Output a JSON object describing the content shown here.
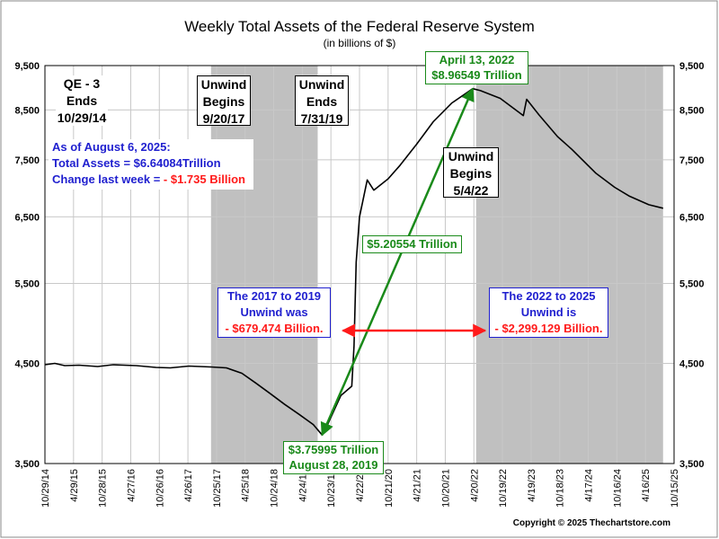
{
  "chart_data": {
    "type": "line",
    "title": "Weekly Total Assets of the Federal Reserve System",
    "subtitle": "(in billions of $)",
    "y_scale": "log",
    "ylim": [
      3500,
      9500
    ],
    "y_ticks": [
      "3,500",
      "4,500",
      "5,500",
      "6,500",
      "7,500",
      "8,500",
      "9,500"
    ],
    "y_tick_values": [
      3500,
      4500,
      5500,
      6500,
      7500,
      8500,
      9500
    ],
    "xlim": [
      "2014-10-29",
      "2025-10-15"
    ],
    "x_ticks": [
      "10/29/14",
      "4/29/15",
      "10/28/15",
      "4/27/16",
      "10/26/16",
      "4/26/17",
      "10/25/17",
      "4/25/18",
      "10/24/18",
      "4/24/19",
      "10/23/19",
      "4/22/20",
      "10/21/20",
      "4/21/21",
      "10/20/21",
      "4/20/22",
      "10/19/22",
      "4/19/23",
      "10/18/23",
      "4/17/24",
      "10/16/24",
      "4/16/25",
      "10/15/25"
    ],
    "x_tick_dates": [
      "2014-10-29",
      "2015-04-29",
      "2015-10-28",
      "2016-04-27",
      "2016-10-26",
      "2017-04-26",
      "2017-10-25",
      "2018-04-25",
      "2018-10-24",
      "2019-04-24",
      "2019-10-23",
      "2020-04-22",
      "2020-10-21",
      "2021-04-21",
      "2021-10-20",
      "2022-04-20",
      "2022-10-19",
      "2023-04-19",
      "2023-10-18",
      "2024-04-17",
      "2024-10-16",
      "2025-04-16",
      "2025-10-15"
    ],
    "grid": true,
    "line_color": "#000000",
    "shade_color": "#c0c0c0",
    "shaded_periods": [
      [
        "2017-09-20",
        "2019-07-31"
      ],
      [
        "2022-05-04",
        "2025-08-06"
      ]
    ],
    "series": [
      {
        "points": [
          [
            "2014-10-29",
            4485
          ],
          [
            "2014-12-31",
            4500
          ],
          [
            "2015-03-04",
            4475
          ],
          [
            "2015-06-03",
            4480
          ],
          [
            "2015-09-30",
            4465
          ],
          [
            "2016-01-06",
            4485
          ],
          [
            "2016-06-01",
            4475
          ],
          [
            "2016-10-05",
            4455
          ],
          [
            "2017-01-04",
            4450
          ],
          [
            "2017-05-03",
            4470
          ],
          [
            "2017-09-20",
            4460
          ],
          [
            "2017-12-27",
            4450
          ],
          [
            "2018-04-04",
            4390
          ],
          [
            "2018-07-04",
            4280
          ],
          [
            "2018-10-03",
            4170
          ],
          [
            "2019-01-02",
            4060
          ],
          [
            "2019-04-03",
            3960
          ],
          [
            "2019-07-03",
            3860
          ],
          [
            "2019-08-28",
            3760
          ],
          [
            "2019-10-02",
            3860
          ],
          [
            "2019-12-25",
            4150
          ],
          [
            "2020-03-04",
            4250
          ],
          [
            "2020-03-18",
            4700
          ],
          [
            "2020-04-01",
            5800
          ],
          [
            "2020-04-22",
            6500
          ],
          [
            "2020-06-10",
            7130
          ],
          [
            "2020-07-22",
            6950
          ],
          [
            "2020-10-21",
            7150
          ],
          [
            "2021-01-06",
            7400
          ],
          [
            "2021-04-21",
            7800
          ],
          [
            "2021-08-04",
            8250
          ],
          [
            "2021-12-01",
            8650
          ],
          [
            "2022-04-13",
            8965
          ],
          [
            "2022-06-01",
            8920
          ],
          [
            "2022-10-05",
            8750
          ],
          [
            "2023-03-01",
            8380
          ],
          [
            "2023-03-22",
            8730
          ],
          [
            "2023-06-07",
            8400
          ],
          [
            "2023-10-04",
            7950
          ],
          [
            "2024-01-03",
            7700
          ],
          [
            "2024-06-05",
            7250
          ],
          [
            "2024-10-02",
            7000
          ],
          [
            "2025-01-01",
            6850
          ],
          [
            "2025-05-07",
            6700
          ],
          [
            "2025-08-06",
            6641
          ]
        ]
      }
    ]
  },
  "annotations": {
    "qe3": [
      "QE - 3",
      "Ends",
      "10/29/14"
    ],
    "unwind_begins_2017": [
      "Unwind",
      "Begins",
      "9/20/17"
    ],
    "unwind_ends_2019": [
      "Unwind",
      "Ends",
      "7/31/19"
    ],
    "unwind_begins_2022": [
      "Unwind",
      "Begins",
      "5/4/22"
    ],
    "summary": {
      "line1": "As of August 6, 2025:",
      "line2": "Total Assets =  $6.64084Trillion",
      "line3_label": "Change last week = ",
      "line3_value": "- $1.735 Billion"
    },
    "peak": [
      "April 13, 2022",
      "$8.96549 Trillion"
    ],
    "trough": [
      "$3.75995 Trillion",
      "August 28, 2019"
    ],
    "rise": "$5.20554 Trillion",
    "unwind_2017_2019": [
      "The 2017 to 2019",
      "Unwind was",
      "- $679.474 Billion."
    ],
    "unwind_2022_2025": [
      "The 2022 to 2025",
      "Unwind is",
      "- $2,299.129 Billion."
    ]
  },
  "copyright": "Copyright © 2025 Thechartstore.com"
}
